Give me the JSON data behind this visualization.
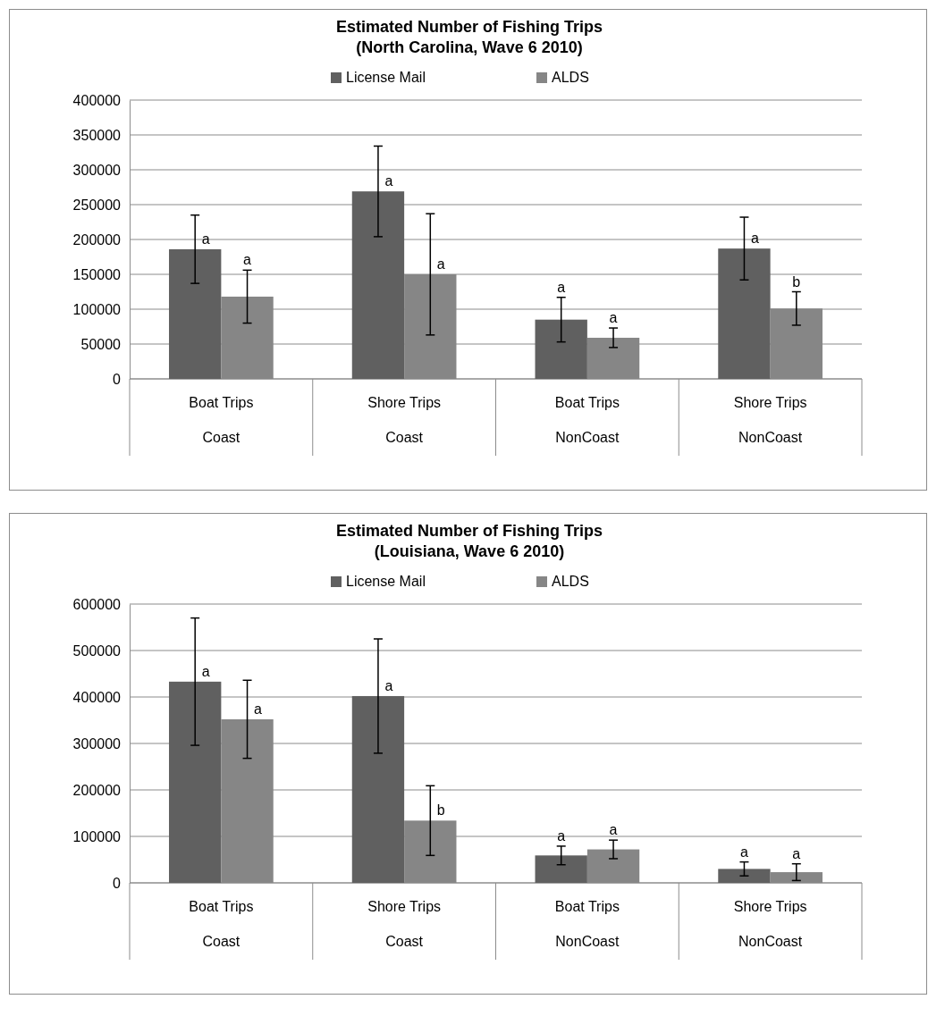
{
  "chart_data": [
    {
      "type": "bar",
      "title": "Estimated Number of Fishing Trips\n(North Carolina, Wave 6 2010)",
      "categories": [
        "Boat Trips\nCoast",
        "Shore Trips\nCoast",
        "Boat Trips\nNonCoast",
        "Shore Trips\nNonCoast"
      ],
      "series": [
        {
          "name": "License Mail",
          "color": "#606060",
          "values": [
            186000,
            269000,
            85000,
            187000
          ],
          "errors": [
            49000,
            65000,
            32000,
            45000
          ],
          "value_labels": [
            "a",
            "a",
            "a",
            "a"
          ]
        },
        {
          "name": "ALDS",
          "color": "#868686",
          "values": [
            118000,
            150000,
            59000,
            101000
          ],
          "errors": [
            38000,
            87000,
            14000,
            24000
          ],
          "value_labels": [
            "a",
            "a",
            "a",
            "b"
          ]
        }
      ],
      "ylim": [
        0,
        400000
      ],
      "yticks": [
        0,
        50000,
        100000,
        150000,
        200000,
        250000,
        300000,
        350000,
        400000
      ],
      "grid": "y",
      "legend": "top"
    },
    {
      "type": "bar",
      "title": "Estimated Number of Fishing Trips\n(Louisiana, Wave 6 2010)",
      "categories": [
        "Boat Trips\nCoast",
        "Shore Trips\nCoast",
        "Boat Trips\nNonCoast",
        "Shore Trips\nNonCoast"
      ],
      "series": [
        {
          "name": "License Mail",
          "color": "#606060",
          "values": [
            433000,
            402000,
            59000,
            30000
          ],
          "errors": [
            137000,
            123000,
            20000,
            15000
          ],
          "value_labels": [
            "a",
            "a",
            "a",
            "a"
          ]
        },
        {
          "name": "ALDS",
          "color": "#868686",
          "values": [
            352000,
            134000,
            72000,
            23000
          ],
          "errors": [
            84000,
            75000,
            20000,
            18000
          ],
          "value_labels": [
            "a",
            "b",
            "a",
            "a"
          ]
        }
      ],
      "ylim": [
        0,
        600000
      ],
      "yticks": [
        0,
        100000,
        200000,
        300000,
        400000,
        500000,
        600000
      ],
      "grid": "y",
      "legend": "top"
    }
  ]
}
